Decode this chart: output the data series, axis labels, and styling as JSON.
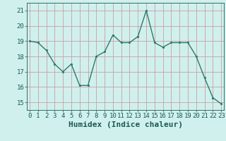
{
  "x": [
    0,
    1,
    2,
    3,
    4,
    5,
    6,
    7,
    8,
    9,
    10,
    11,
    12,
    13,
    14,
    15,
    16,
    17,
    18,
    19,
    20,
    21,
    22,
    23
  ],
  "y": [
    19.0,
    18.9,
    18.4,
    17.5,
    17.0,
    17.5,
    16.1,
    16.1,
    18.0,
    18.3,
    19.4,
    18.9,
    18.9,
    19.3,
    21.0,
    18.9,
    18.6,
    18.9,
    18.9,
    18.9,
    18.0,
    16.6,
    15.3,
    14.9
  ],
  "line_color": "#2d7a6a",
  "marker_color": "#2d7a6a",
  "bg_color": "#d0f0ee",
  "grid_color_major": "#c8a0a0",
  "grid_color_minor": "#e0c0c0",
  "xlabel": "Humidex (Indice chaleur)",
  "ylim": [
    14.5,
    21.5
  ],
  "yticks": [
    15,
    16,
    17,
    18,
    19,
    20,
    21
  ],
  "xticks": [
    0,
    1,
    2,
    3,
    4,
    5,
    6,
    7,
    8,
    9,
    10,
    11,
    12,
    13,
    14,
    15,
    16,
    17,
    18,
    19,
    20,
    21,
    22,
    23
  ],
  "label_color": "#1a5a50",
  "tick_color": "#1a5a50",
  "font_family": "monospace",
  "xlabel_fontsize": 8,
  "tick_fontsize": 6.5,
  "linewidth": 1.0,
  "markersize": 2.5,
  "xlim": [
    -0.3,
    23.3
  ]
}
